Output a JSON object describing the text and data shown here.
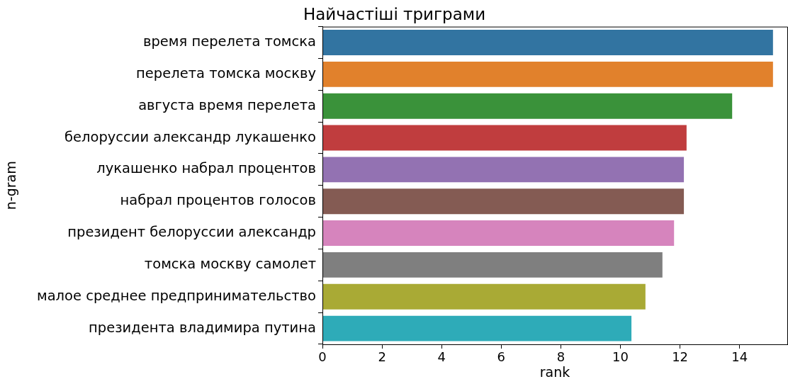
{
  "chart_data": {
    "type": "bar",
    "orientation": "horizontal",
    "title": "Найчастіші триграми",
    "xlabel": "rank",
    "ylabel": "n-gram",
    "categories": [
      "время перелета томска",
      "перелета томска москву",
      "августа время перелета",
      "белоруссии александр лукашенко",
      "лукашенко набрал процентов",
      "набрал процентов голосов",
      "президент белоруссии александр",
      "томска москву самолет",
      "малое среднее предпринимательство",
      "президента владимира путина"
    ],
    "values": [
      15.12,
      15.12,
      13.75,
      12.22,
      12.13,
      12.13,
      11.8,
      11.41,
      10.84,
      10.37
    ],
    "colors": [
      "#3274a1",
      "#e1812c",
      "#3a923a",
      "#c03d3e",
      "#9372b2",
      "#845b53",
      "#d684bd",
      "#7f7f7f",
      "#a9aa35",
      "#2eabb8"
    ],
    "xlim": [
      0,
      15.6
    ],
    "xticks": [
      0,
      2,
      4,
      6,
      8,
      10,
      12,
      14
    ],
    "grid": false,
    "legend": false
  }
}
